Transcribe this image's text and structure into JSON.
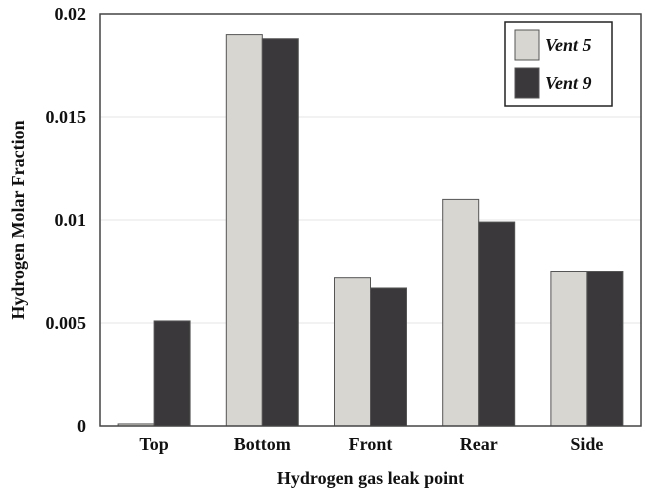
{
  "chart_data": {
    "type": "bar",
    "categories": [
      "Top",
      "Bottom",
      "Front",
      "Rear",
      "Side"
    ],
    "series": [
      {
        "name": "Vent 5",
        "values": [
          0.0001,
          0.019,
          0.0072,
          0.011,
          0.0075
        ],
        "color": "#d8d6d1"
      },
      {
        "name": "Vent 9",
        "values": [
          0.0051,
          0.0188,
          0.0067,
          0.0099,
          0.0075
        ],
        "color": "#3a383a"
      }
    ],
    "xlabel": "Hydrogen gas leak point",
    "ylabel": "Hydrogen Molar Fraction",
    "ylim": [
      0,
      0.02
    ],
    "yticks": [
      0,
      0.005,
      0.01,
      0.015,
      0.02
    ],
    "ytick_labels": [
      "0",
      "0.005",
      "0.01",
      "0.015",
      "0.02"
    ],
    "grid": "horizontal",
    "legend_position": "top-right"
  }
}
